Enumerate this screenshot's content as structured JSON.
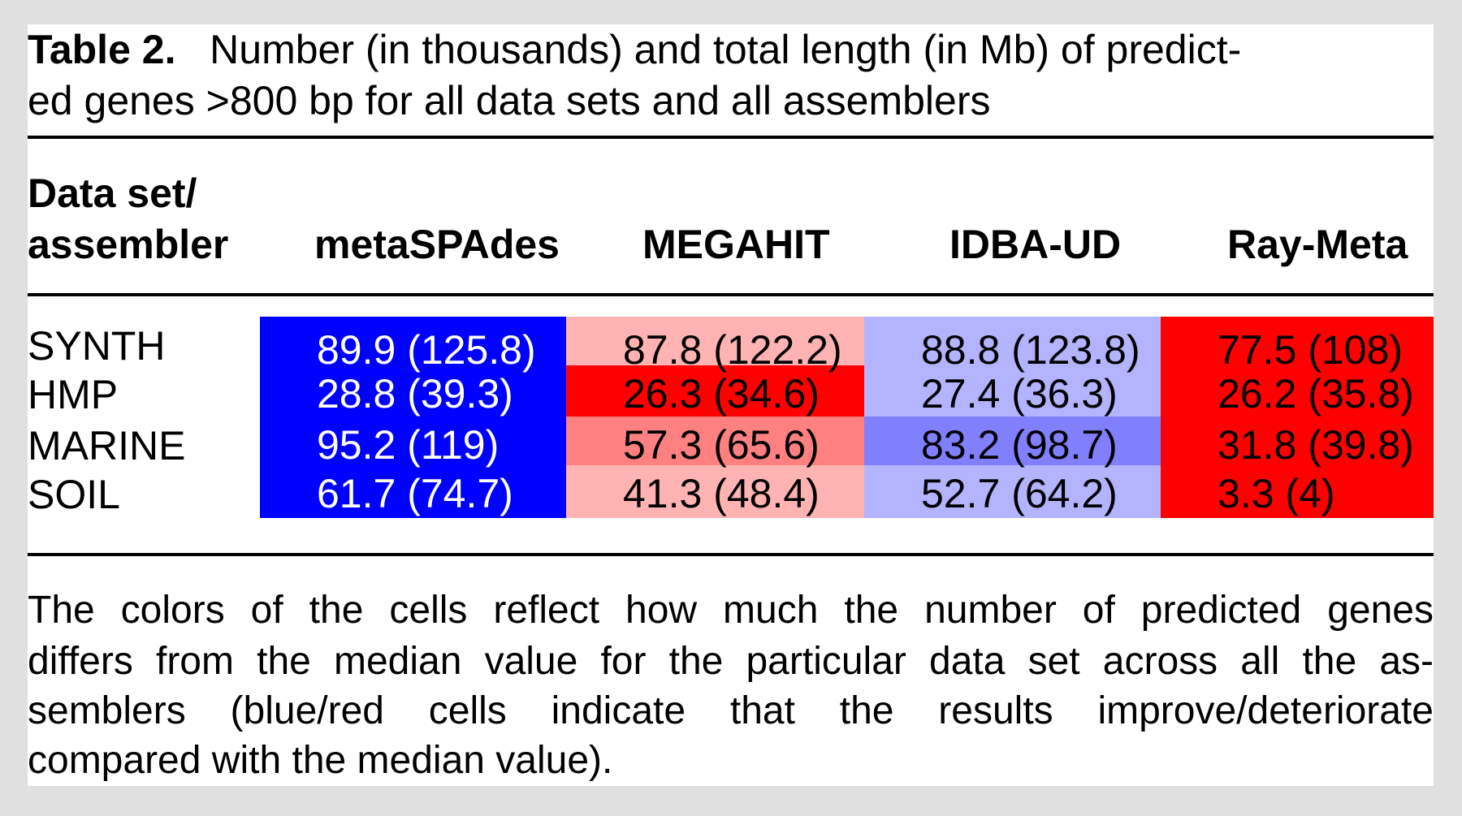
{
  "title": {
    "label": "Table 2.",
    "lines": [
      "Number (in thousands) and total length (in Mb) of predict-",
      "ed genes >800 bp for all data sets and all assemblers"
    ]
  },
  "header": {
    "row_header_line1": "Data set/",
    "row_header_line2": "assembler",
    "columns": [
      "metaSPAdes",
      "MEGAHIT",
      "IDBA-UD",
      "Ray-Meta"
    ]
  },
  "rows": [
    {
      "label": "SYNTH",
      "cells": [
        "89.9 (125.8)",
        "87.8 (122.2)",
        "88.8 (123.8)",
        "77.5 (108)"
      ]
    },
    {
      "label": "HMP",
      "cells": [
        "28.8 (39.3)",
        "26.3 (34.6)",
        "27.4 (36.3)",
        "26.2 (35.8)"
      ]
    },
    {
      "label": "MARINE",
      "cells": [
        "95.2 (119)",
        "57.3 (65.6)",
        "83.2 (98.7)",
        "31.8 (39.8)"
      ]
    },
    {
      "label": "SOIL",
      "cells": [
        "61.7 (74.7)",
        "41.3 (48.4)",
        "52.7 (64.2)",
        "3.3 (4)"
      ]
    }
  ],
  "cell_colors": [
    [
      "#0000ff",
      "#ffb3b3",
      "#b3b3ff",
      "#ff0000"
    ],
    [
      "#0000ff",
      "#ff0000",
      "#b3b3ff",
      "#ff0000"
    ],
    [
      "#0000ff",
      "#ff8080",
      "#8080ff",
      "#ff0000"
    ],
    [
      "#0000ff",
      "#ffb3b3",
      "#b3b3ff",
      "#ff0000"
    ]
  ],
  "cell_text_colors": [
    [
      "#ffffff",
      "#000000",
      "#000000",
      "#000000"
    ],
    [
      "#ffffff",
      "#000000",
      "#000000",
      "#000000"
    ],
    [
      "#ffffff",
      "#000000",
      "#000000",
      "#000000"
    ],
    [
      "#ffffff",
      "#000000",
      "#000000",
      "#000000"
    ]
  ],
  "caption_lines": [
    "The colors of the cells reflect how much the number of predicted genes",
    "differs from the median value for the particular data set across all the as-",
    "semblers (blue/red cells indicate that the results improve/deteriorate",
    "compared with the median value)."
  ]
}
